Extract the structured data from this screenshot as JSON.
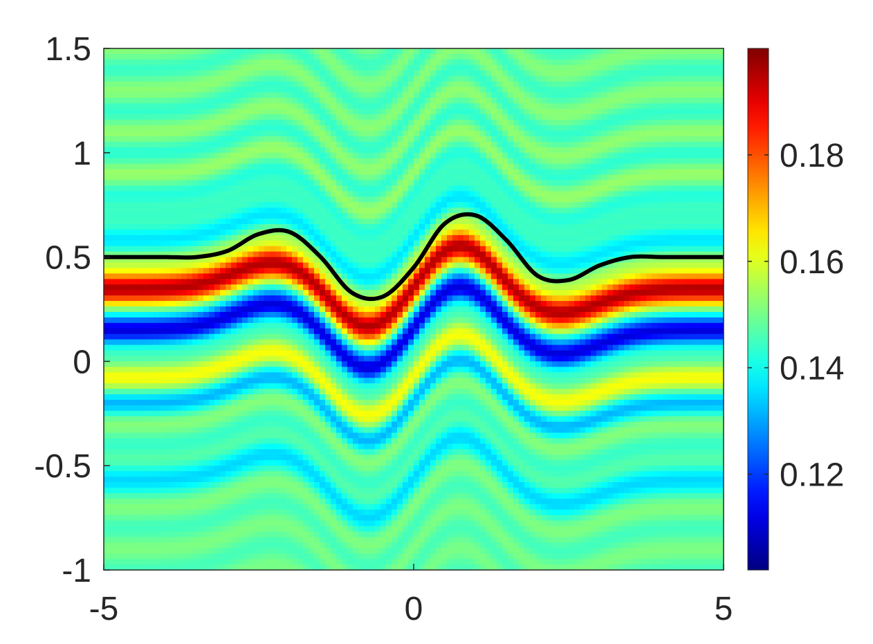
{
  "chart_data": {
    "type": "heatmap",
    "title": "",
    "xlabel": "",
    "ylabel": "",
    "xlim": [
      -5,
      5
    ],
    "ylim": [
      -1,
      1.5
    ],
    "x_ticks": [
      {
        "value": -5,
        "label": "-5"
      },
      {
        "value": 0,
        "label": "0"
      },
      {
        "value": 5,
        "label": "5"
      }
    ],
    "y_ticks": [
      {
        "value": -1,
        "label": "-1"
      },
      {
        "value": -0.5,
        "label": "-0.5"
      },
      {
        "value": 0,
        "label": "0"
      },
      {
        "value": 0.5,
        "label": "0.5"
      },
      {
        "value": 1,
        "label": "1"
      },
      {
        "value": 1.5,
        "label": "1.5"
      }
    ],
    "colormap": "jet",
    "colorbar": {
      "limits": [
        0.102,
        0.2
      ],
      "ticks": [
        {
          "value": 0.12,
          "label": "0.12"
        },
        {
          "value": 0.14,
          "label": "0.14"
        },
        {
          "value": 0.16,
          "label": "0.16"
        },
        {
          "value": 0.18,
          "label": "0.18"
        }
      ]
    },
    "field": {
      "baseline_value": 0.148,
      "interface_baseline_y": 0.5,
      "interface_bumps": [
        {
          "x": -2.2,
          "amplitude": 0.13,
          "width": 0.95
        },
        {
          "x": -0.75,
          "amplitude": -0.2,
          "width": 0.8
        },
        {
          "x": 0.75,
          "amplitude": 0.22,
          "width": 0.8
        },
        {
          "x": 2.3,
          "amplitude": -0.12,
          "width": 0.95
        }
      ],
      "bands": [
        {
          "offset": -0.14,
          "amplitude": 0.048,
          "thickness": 0.075
        },
        {
          "offset": -0.36,
          "amplitude": -0.038,
          "thickness": 0.065
        },
        {
          "offset": -0.56,
          "amplitude": 0.012,
          "thickness": 0.07
        },
        {
          "offset": -0.7,
          "amplitude": -0.012,
          "thickness": 0.06
        },
        {
          "offset": -1.05,
          "amplitude": -0.012,
          "thickness": 0.07
        },
        {
          "offset": 0.05,
          "amplitude": -0.008,
          "thickness": 0.06
        },
        {
          "offset": 0.2,
          "amplitude": -0.01,
          "thickness": 0.05
        }
      ],
      "stripe_amplitude": 0.007,
      "stripe_period": 0.2
    },
    "series": [
      {
        "type": "line",
        "color": "#000000",
        "x": [
          -5,
          -4.5,
          -4,
          -3.5,
          -3,
          -2.5,
          -2,
          -1.5,
          -1,
          -0.5,
          0,
          0.5,
          1,
          1.5,
          2,
          2.5,
          3,
          3.5,
          4,
          4.5,
          5
        ],
        "y": [
          0.5,
          0.5,
          0.5,
          0.5,
          0.53,
          0.61,
          0.62,
          0.5,
          0.33,
          0.31,
          0.45,
          0.66,
          0.7,
          0.58,
          0.41,
          0.39,
          0.46,
          0.5,
          0.5,
          0.5,
          0.5
        ]
      }
    ]
  }
}
